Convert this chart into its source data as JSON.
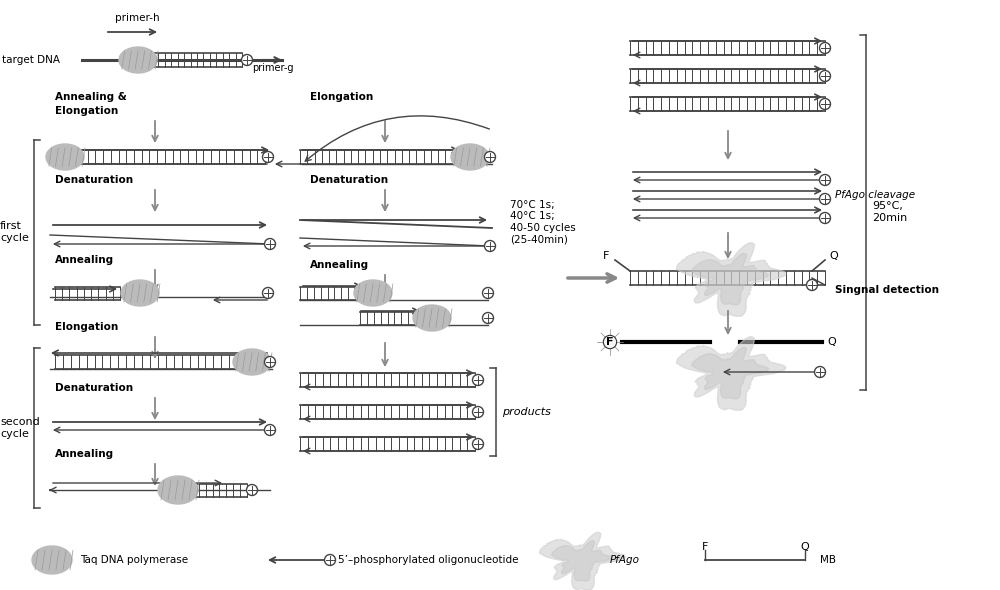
{
  "bg_color": "#ffffff",
  "line_color": "#444444",
  "arrow_color": "#888888",
  "text_color": "#000000",
  "poly_color": "#aaaaaa",
  "pfago_color": "#cccccc",
  "temp_text": "70°C 1s;\n40°C 1s;\n40-50 cycles\n(25-40min)",
  "right_temp": "95°C,\n20min",
  "pfago_label": "PfAgo cleavage",
  "signal_label": "Singnal detection",
  "products_label": "products"
}
